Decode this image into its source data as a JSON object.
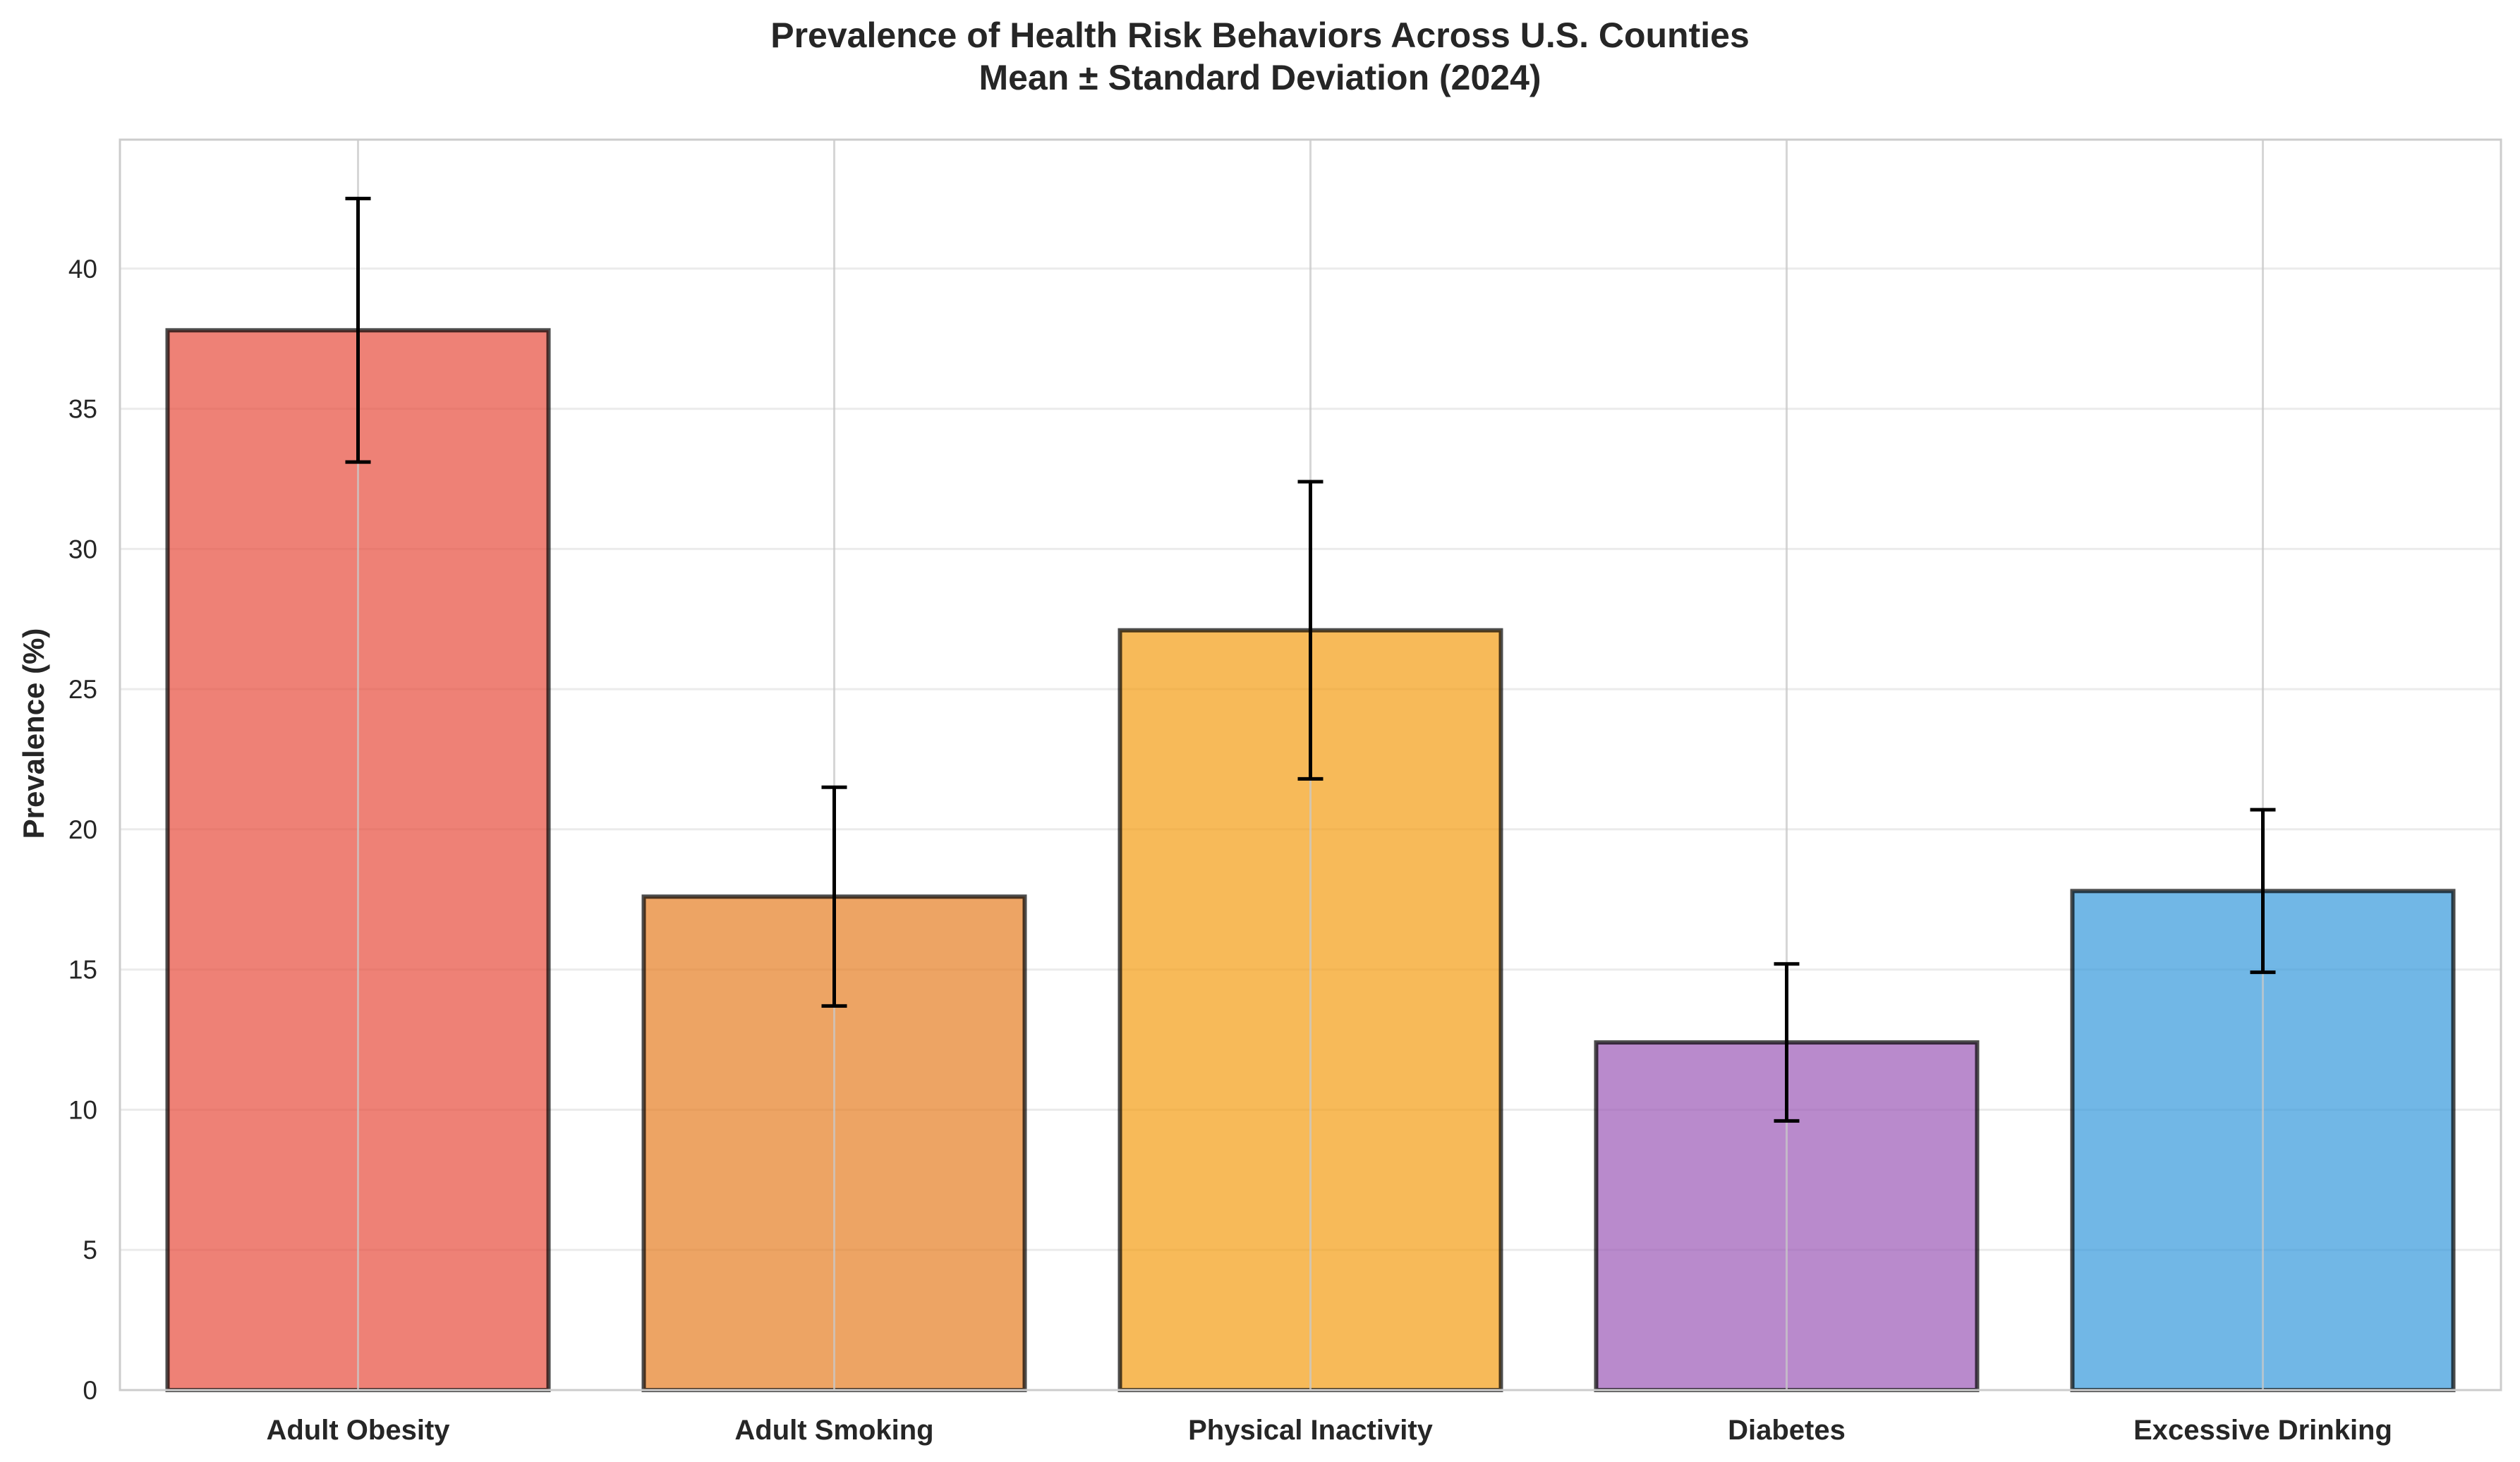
{
  "chart_data": {
    "type": "bar",
    "title_line1": "Prevalence of Health Risk Behaviors Across U.S. Counties",
    "title_line2": "Mean ± Standard Deviation (2024)",
    "ylabel": "Prevalence (%)",
    "xlabel": "",
    "categories": [
      "Adult Obesity",
      "Adult Smoking",
      "Physical Inactivity",
      "Diabetes",
      "Excessive Drinking"
    ],
    "values": [
      37.8,
      17.6,
      27.1,
      12.4,
      17.8
    ],
    "std": [
      4.7,
      3.9,
      5.3,
      2.8,
      2.9
    ],
    "colors": [
      "#e74c3c",
      "#e67e22",
      "#f39c12",
      "#9b59b6",
      "#3498db"
    ],
    "ylim": [
      0,
      44.6
    ],
    "yticks": [
      0,
      5,
      10,
      15,
      20,
      25,
      30,
      35,
      40
    ],
    "grid": true,
    "legend": "none"
  }
}
